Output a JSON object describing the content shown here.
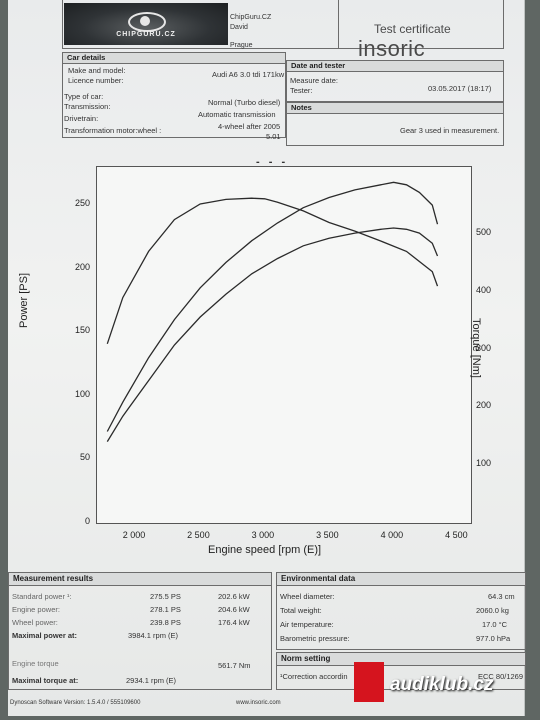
{
  "header": {
    "company": "ChipGuru.CZ",
    "person": "David",
    "city": "Prague",
    "logo_text": "CHIPGURU.CZ",
    "cert_title": "Test certificate",
    "brand": "insoric",
    "brand_tagline": "www.insoric.com"
  },
  "car": {
    "title": "Car details",
    "rows": [
      {
        "label": "Make and model:",
        "value": "Audi A6 3.0 tdi 171kw"
      },
      {
        "label": "Licence number:",
        "value": ""
      },
      {
        "label": "Type of car:",
        "value": "Normal (Turbo diesel)"
      },
      {
        "label": "Transmission:",
        "value": "Automatic transmission"
      },
      {
        "label": "Drivetrain:",
        "value": "4-wheel after 2005"
      },
      {
        "label": "Transformation motor:wheel :",
        "value": "5.01"
      }
    ]
  },
  "tester": {
    "title": "Date and tester",
    "date_label": "Measure date:",
    "date_value": "03.05.2017 (18:17)",
    "tester_label": "Tester:",
    "notes_title": "Notes",
    "notes_value": "Gear 3 used in measurement."
  },
  "chart_data": {
    "type": "line",
    "legend": "- - -",
    "xlabel": "Engine speed [rpm (E)]",
    "ylabel": "Power [PS]",
    "y2label": "Torque [Nm]",
    "xlim": [
      1700,
      4600
    ],
    "ylim": [
      0,
      280
    ],
    "y2lim": [
      0,
      616
    ],
    "x_ticks": [
      "2 000",
      "2 500",
      "3 000",
      "3 500",
      "4 000",
      "4 500"
    ],
    "x_tick_values": [
      2000,
      2500,
      3000,
      3500,
      4000,
      4500
    ],
    "y_ticks": [
      0,
      50,
      100,
      150,
      200,
      250
    ],
    "y2_ticks": [
      100,
      200,
      300,
      400,
      500
    ],
    "series": [
      {
        "axis": "left",
        "x": [
          1780,
          1900,
          2100,
          2300,
          2500,
          2700,
          2900,
          3100,
          3300,
          3500,
          3700,
          3900,
          4000,
          4100,
          4200,
          4300,
          4340
        ],
        "y": [
          72,
          95,
          130,
          160,
          185,
          205,
          222,
          236,
          248,
          256,
          262,
          266,
          268,
          266,
          260,
          250,
          235
        ]
      },
      {
        "axis": "left",
        "x": [
          1780,
          1900,
          2100,
          2300,
          2500,
          2700,
          2900,
          3100,
          3300,
          3500,
          3700,
          3900,
          4000,
          4100,
          4200,
          4300,
          4340
        ],
        "y": [
          64,
          84,
          112,
          140,
          162,
          180,
          196,
          208,
          218,
          224,
          228,
          231,
          232,
          231,
          228,
          220,
          210
        ]
      },
      {
        "axis": "right",
        "x": [
          1780,
          1900,
          2100,
          2300,
          2500,
          2700,
          2900,
          3000,
          3100,
          3300,
          3500,
          3700,
          3900,
          4100,
          4300,
          4340
        ],
        "y": [
          310,
          390,
          470,
          525,
          552,
          560,
          562,
          561,
          555,
          540,
          520,
          505,
          488,
          470,
          435,
          410
        ]
      }
    ]
  },
  "results": {
    "title": "Measurement results",
    "rows": [
      {
        "label": "Standard power ¹:",
        "v1": "275.5 PS",
        "v2": "202.6 kW"
      },
      {
        "label": "Engine power:",
        "v1": "278.1 PS",
        "v2": "204.6 kW"
      },
      {
        "label": "Wheel power:",
        "v1": "239.8 PS",
        "v2": "176.4 kW"
      },
      {
        "label": "Maximal power at:",
        "v1": "3984.1 rpm (E)",
        "v2": ""
      }
    ],
    "torque_label": "Engine torque",
    "torque_value": "561.7 Nm",
    "max_torque_label": "Maximal torque at:",
    "max_torque_value": "2934.1 rpm (E)"
  },
  "env": {
    "title": "Environmental data",
    "rows": [
      {
        "label": "Wheel diameter:",
        "value": "64.3 cm"
      },
      {
        "label": "Total weight:",
        "value": "2060.0 kg"
      },
      {
        "label": "Air temperature:",
        "value": "17.0 °C"
      },
      {
        "label": "Barometric pressure:",
        "value": "977.0 hPa"
      }
    ],
    "norm_title": "Norm setting",
    "norm_label": "¹Correction accordin",
    "norm_value": "ECC 80/1269"
  },
  "footer": {
    "software": "Dynoscan Software Version: 1.5.4.0 / 555109600",
    "site": "www.insoric.com"
  },
  "watermark": "audiklub.cz",
  "colors": {
    "paper": "#eceeee",
    "ink": "#222222",
    "badge_red": "#d5141e"
  }
}
